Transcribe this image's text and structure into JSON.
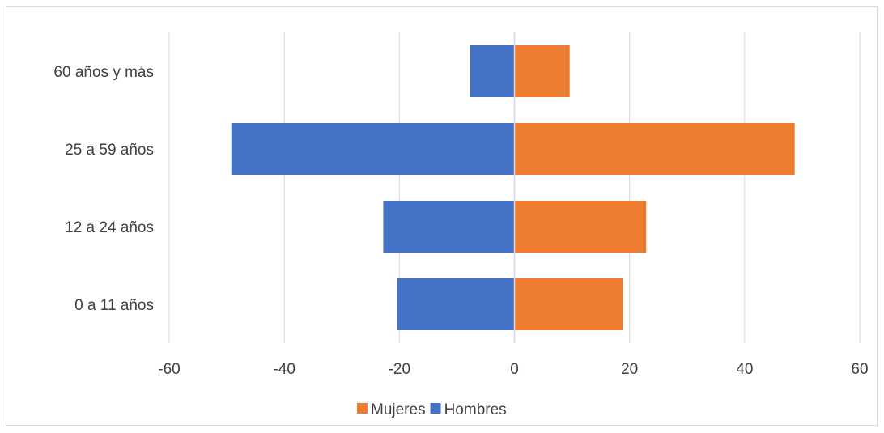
{
  "chart_data": {
    "type": "bar",
    "orientation": "horizontal",
    "title": "",
    "xlabel": "",
    "ylabel": "",
    "categories": [
      "60 años y más",
      "25 a 59 años",
      "12 a 24 años",
      "0 a 11 años"
    ],
    "series": [
      {
        "name": "Mujeres",
        "color": "#ED7D31",
        "values": [
          9.6,
          48.7,
          22.9,
          18.8
        ]
      },
      {
        "name": "Hombres",
        "color": "#4472C4",
        "values": [
          -7.7,
          -49.2,
          -22.8,
          -20.4
        ]
      }
    ],
    "xlim": [
      -60,
      60
    ],
    "xticks": [
      -60,
      -40,
      -20,
      0,
      20,
      40,
      60
    ],
    "tick_labels": [
      "-60",
      "-40",
      "-20",
      "0",
      "20",
      "40",
      "60"
    ],
    "grid": "vertical",
    "legend_position": "bottom"
  }
}
